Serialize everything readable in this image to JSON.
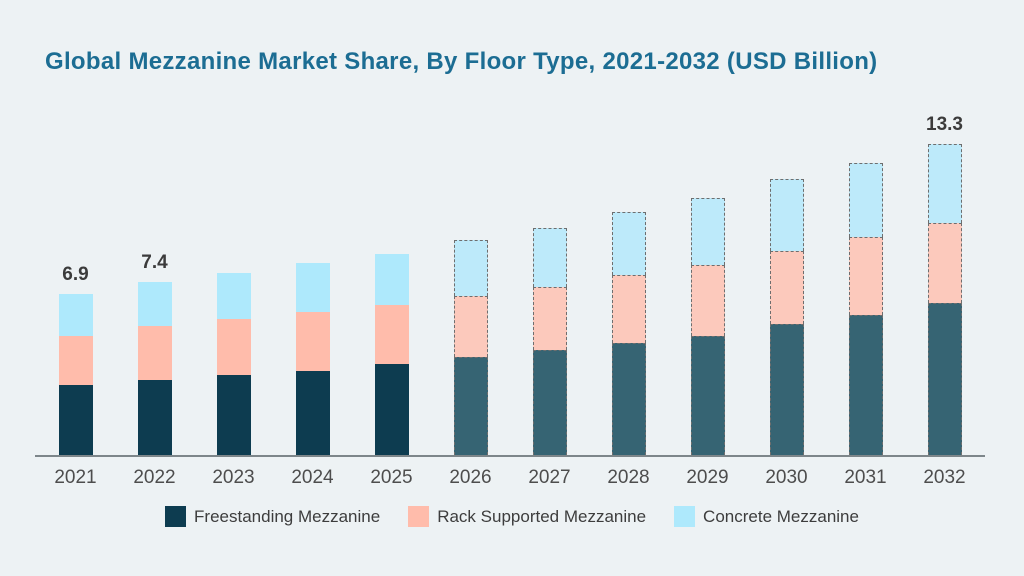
{
  "title": "Global Mezzanine Market Share, By Floor Type, 2021-2032 (USD Billion)",
  "colors": {
    "background": "#edf2f4",
    "title_text": "#1c6d93",
    "axis_line": "#7d868a",
    "total_label_text": "#3b3b3b",
    "tick_label_text": "#4d4d4d",
    "legend_text": "#3d3d3d",
    "historical_series": [
      "#0d3c50",
      "#ffbcab",
      "#aee9fc"
    ],
    "forecast_series": [
      "#366473",
      "#fcc9bc",
      "#bdeafa"
    ],
    "forecast_border": "#6e6e6e"
  },
  "chart_data": {
    "type": "bar",
    "stacked": true,
    "title": "Global Mezzanine Market Share, By Floor Type, 2021-2032 (USD Billion)",
    "xlabel": "",
    "ylabel": "USD Billion",
    "ylim": [
      0,
      14
    ],
    "grid": false,
    "legend_position": "bottom",
    "categories": [
      2021,
      2022,
      2023,
      2024,
      2025,
      2026,
      2027,
      2028,
      2029,
      2030,
      2031,
      2032
    ],
    "series": [
      {
        "key": "freestanding",
        "name": "Freestanding Mezzanine",
        "values": [
          3.0,
          3.2,
          3.4,
          3.6,
          3.9,
          4.2,
          4.5,
          4.8,
          5.1,
          5.6,
          6.0,
          6.5
        ]
      },
      {
        "key": "rack",
        "name": "Rack Supported Mezzanine",
        "values": [
          2.1,
          2.3,
          2.4,
          2.5,
          2.5,
          2.6,
          2.7,
          2.9,
          3.0,
          3.1,
          3.3,
          3.4
        ]
      },
      {
        "key": "concrete",
        "name": "Concrete Mezzanine",
        "values": [
          1.8,
          1.9,
          2.0,
          2.1,
          2.2,
          2.4,
          2.5,
          2.7,
          2.9,
          3.1,
          3.2,
          3.4
        ]
      }
    ],
    "totals": [
      6.9,
      7.4,
      7.8,
      8.2,
      8.6,
      9.2,
      9.7,
      10.4,
      11.0,
      11.8,
      12.5,
      13.3
    ],
    "bar_labels": [
      "6.9",
      "7.4",
      "",
      "",
      "",
      "",
      "",
      "",
      "",
      "",
      "",
      "13.3"
    ],
    "forecast_from_year": 2026,
    "forecast_style": "dashed-outline"
  },
  "legend": {
    "items": [
      {
        "label": "Freestanding Mezzanine",
        "color": "#0d3c50"
      },
      {
        "label": "Rack Supported Mezzanine",
        "color": "#ffbcab"
      },
      {
        "label": "Concrete Mezzanine",
        "color": "#aee9fc"
      }
    ]
  }
}
